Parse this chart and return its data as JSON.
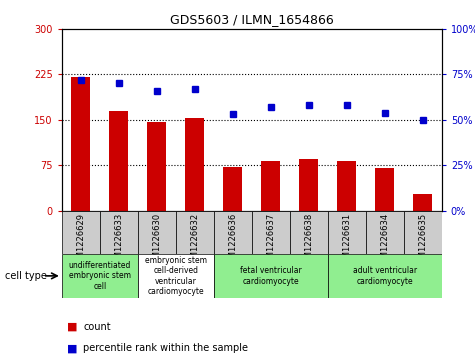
{
  "title": "GDS5603 / ILMN_1654866",
  "samples": [
    "GSM1226629",
    "GSM1226633",
    "GSM1226630",
    "GSM1226632",
    "GSM1226636",
    "GSM1226637",
    "GSM1226638",
    "GSM1226631",
    "GSM1226634",
    "GSM1226635"
  ],
  "counts": [
    220,
    165,
    147,
    153,
    72,
    82,
    85,
    82,
    70,
    28
  ],
  "percentiles": [
    72,
    70,
    66,
    67,
    53,
    57,
    58,
    58,
    54,
    50
  ],
  "ylim_left": [
    0,
    300
  ],
  "ylim_right": [
    0,
    100
  ],
  "yticks_left": [
    0,
    75,
    150,
    225,
    300
  ],
  "yticks_right": [
    0,
    25,
    50,
    75,
    100
  ],
  "bar_color": "#cc0000",
  "dot_color": "#0000cc",
  "hgrid_lines": [
    75,
    150,
    225
  ],
  "cell_types": [
    {
      "label": "undifferentiated\nembryonic stem\ncell",
      "span": [
        0,
        2
      ],
      "color": "#90ee90"
    },
    {
      "label": "embryonic stem\ncell-derived\nventricular\ncardiomyocyte",
      "span": [
        2,
        4
      ],
      "color": "#ffffff"
    },
    {
      "label": "fetal ventricular\ncardiomyocyte",
      "span": [
        4,
        7
      ],
      "color": "#90ee90"
    },
    {
      "label": "adult ventricular\ncardiomyocyte",
      "span": [
        7,
        10
      ],
      "color": "#90ee90"
    }
  ],
  "sample_box_color": "#cccccc",
  "legend_count_label": "count",
  "legend_pct_label": "percentile rank within the sample",
  "cell_type_label": "cell type"
}
